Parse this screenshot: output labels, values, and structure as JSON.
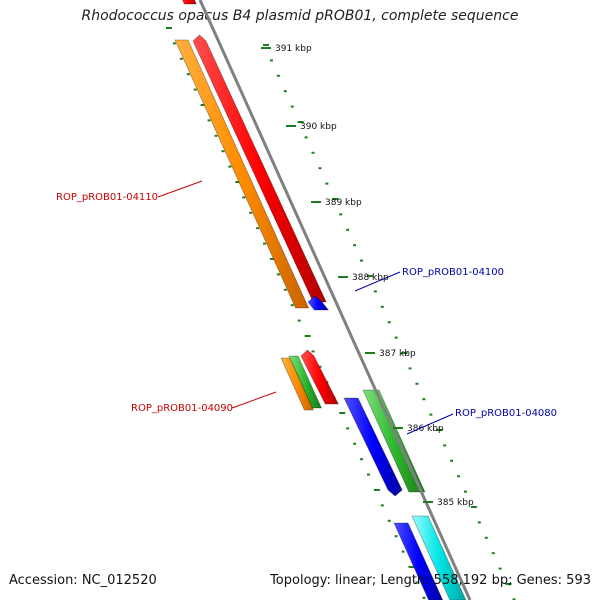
{
  "title": "Rhodococcus opacus B4 plasmid pROB01, complete sequence",
  "footer": {
    "accession_label": "Accession: NC_012520",
    "stats_label": "Topology: linear; Length: 558,192 bp; Genes: 593"
  },
  "scale": {
    "unit": "kbp",
    "ticks_kbp": [
      385,
      386,
      387,
      388,
      389,
      390,
      391
    ]
  },
  "gene_labels": [
    {
      "text": "ROP_pROB01-04110",
      "color": "#cc0000"
    },
    {
      "text": "ROP_pROB01-04100",
      "color": "#0000aa"
    },
    {
      "text": "ROP_pROB01-04090",
      "color": "#cc0000"
    },
    {
      "text": "ROP_pROB01-04080",
      "color": "#0000aa"
    }
  ],
  "colors": {
    "backbone": "#808080",
    "tick": "#1e7d1e",
    "feature_orange": "#ff8c00",
    "feature_red": "#ff0000",
    "feature_green": "#2db92d",
    "feature_blue": "#0000ff",
    "feature_cyan": "#00e5e5"
  }
}
